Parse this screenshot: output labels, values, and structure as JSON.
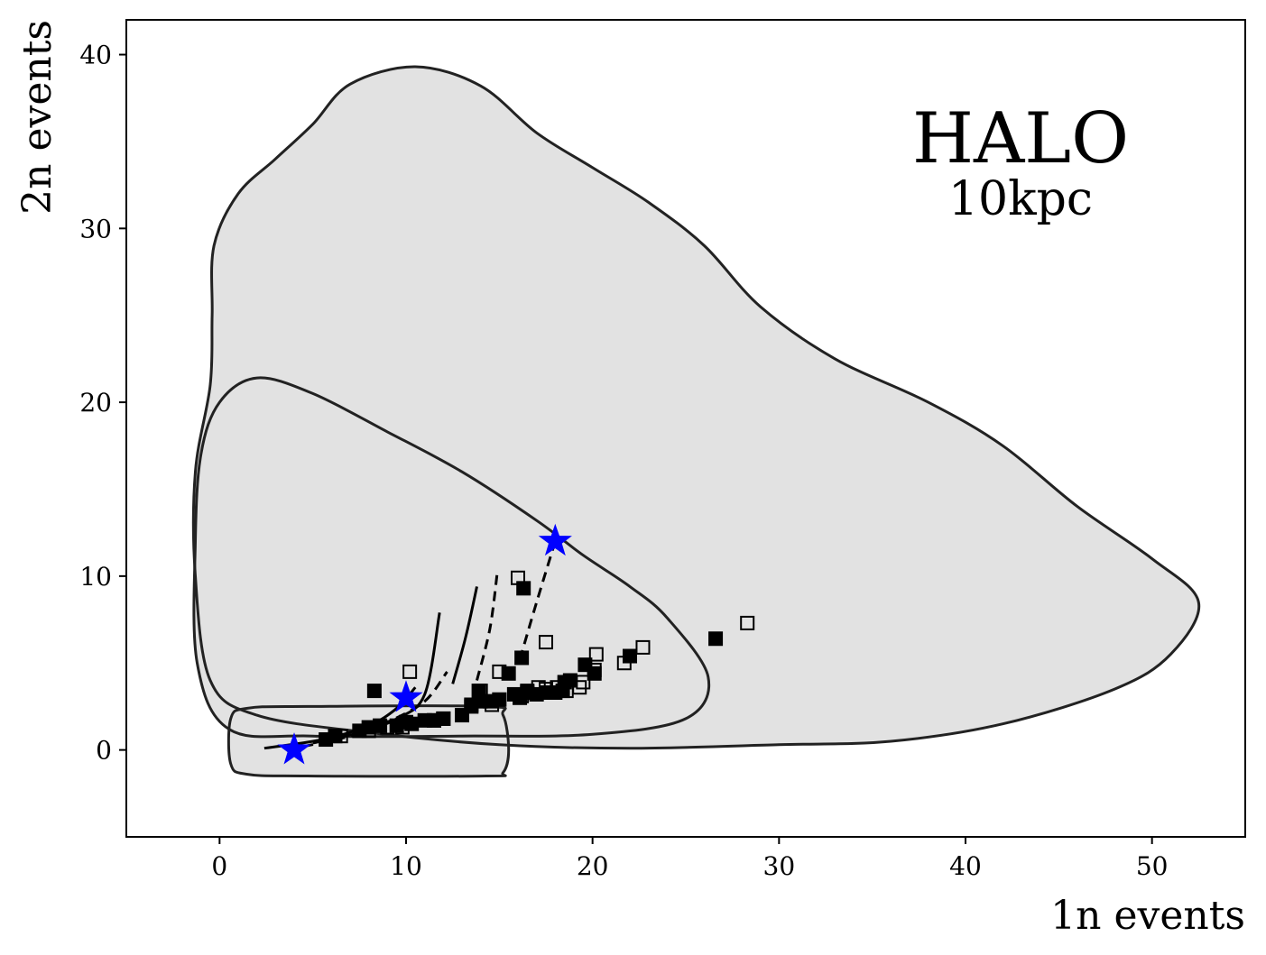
{
  "chart_data": {
    "type": "scatter",
    "title": "HALO",
    "subtitle": "10kpc",
    "xlabel": "1n events",
    "ylabel": "2n events",
    "xlim": [
      -5,
      55
    ],
    "ylim": [
      -5,
      42
    ],
    "xticks": [
      0,
      10,
      20,
      30,
      40,
      50
    ],
    "yticks": [
      0,
      10,
      20,
      30,
      40
    ],
    "grid": false,
    "colors": {
      "region_fill": "#e2e2e2",
      "region_edge": "#222222",
      "markers": "#000000",
      "stars": "#0000ff"
    },
    "regions": [
      {
        "points": [
          [
            4.7,
            -1.5
          ],
          [
            14.3,
            -1.5
          ],
          [
            15.2,
            -1.3
          ],
          [
            15.5,
            0
          ],
          [
            15.2,
            2.0
          ],
          [
            14.3,
            2.5
          ],
          [
            4.7,
            2.5
          ],
          [
            1.5,
            2.4
          ],
          [
            0.6,
            1.8
          ],
          [
            0.6,
            -0.8
          ],
          [
            1.5,
            -1.4
          ]
        ]
      },
      {
        "points": [
          [
            2,
            21.4
          ],
          [
            5,
            20.5
          ],
          [
            9,
            18.3
          ],
          [
            13,
            16
          ],
          [
            17,
            13.2
          ],
          [
            19.5,
            11.2
          ],
          [
            22,
            9.4
          ],
          [
            24,
            7.6
          ],
          [
            26.2,
            4.2
          ],
          [
            25,
            1.8
          ],
          [
            20,
            0.9
          ],
          [
            13,
            0.8
          ],
          [
            5,
            0.8
          ],
          [
            0.5,
            1.2
          ],
          [
            -1.2,
            5
          ],
          [
            -1.3,
            12
          ],
          [
            -1,
            17
          ],
          [
            0,
            20
          ]
        ]
      },
      {
        "points": [
          [
            10.5,
            39.3
          ],
          [
            14,
            38.2
          ],
          [
            17,
            35.5
          ],
          [
            20,
            33.5
          ],
          [
            23,
            31.5
          ],
          [
            26,
            29
          ],
          [
            29,
            25.5
          ],
          [
            33,
            22.5
          ],
          [
            38,
            20
          ],
          [
            42,
            17.5
          ],
          [
            46,
            14
          ],
          [
            50,
            11
          ],
          [
            52.5,
            8.5
          ],
          [
            51,
            5.5
          ],
          [
            48,
            3.5
          ],
          [
            42,
            1.5
          ],
          [
            36,
            0.5
          ],
          [
            30,
            0.3
          ],
          [
            22,
            0.1
          ],
          [
            15,
            0.3
          ],
          [
            8,
            1
          ],
          [
            2,
            2
          ],
          [
            -0.5,
            4
          ],
          [
            -1.3,
            10
          ],
          [
            -1.3,
            16
          ],
          [
            -0.5,
            21
          ],
          [
            -0.4,
            25
          ],
          [
            -0.3,
            29
          ],
          [
            1,
            32
          ],
          [
            3,
            34
          ],
          [
            5,
            36
          ],
          [
            7,
            38.3
          ]
        ]
      }
    ],
    "series": [
      {
        "marker": "filled-square",
        "points": [
          [
            8.3,
            3.4
          ],
          [
            5.7,
            0.6
          ],
          [
            6.2,
            0.8
          ],
          [
            7.5,
            1.1
          ],
          [
            8.0,
            1.3
          ],
          [
            8.6,
            1.4
          ],
          [
            9.5,
            1.4
          ],
          [
            10.0,
            1.6
          ],
          [
            10.3,
            1.5
          ],
          [
            11.0,
            1.7
          ],
          [
            11.5,
            1.7
          ],
          [
            12.0,
            1.8
          ],
          [
            13.0,
            2.0
          ],
          [
            13.5,
            2.6
          ],
          [
            14.0,
            2.8
          ],
          [
            14.5,
            2.8
          ],
          [
            15.0,
            2.9
          ],
          [
            15.8,
            3.2
          ],
          [
            16.1,
            3.0
          ],
          [
            16.5,
            3.3
          ],
          [
            17.0,
            3.2
          ],
          [
            17.5,
            3.3
          ],
          [
            18.0,
            3.3
          ],
          [
            18.4,
            3.4
          ],
          [
            18.5,
            3.9
          ],
          [
            18.8,
            4.0
          ],
          [
            19.6,
            4.9
          ],
          [
            20.1,
            4.4
          ],
          [
            15.5,
            4.4
          ],
          [
            16.2,
            5.3
          ],
          [
            16.3,
            9.3
          ],
          [
            22.0,
            5.4
          ],
          [
            26.6,
            6.4
          ],
          [
            13.9,
            3.4
          ]
        ]
      },
      {
        "marker": "open-square",
        "points": [
          [
            6.5,
            0.8
          ],
          [
            8.0,
            1.1
          ],
          [
            9.0,
            1.3
          ],
          [
            9.8,
            1.3
          ],
          [
            10.2,
            4.5
          ],
          [
            11.5,
            1.7
          ],
          [
            12.0,
            1.8
          ],
          [
            13.5,
            2.5
          ],
          [
            14.0,
            3.4
          ],
          [
            14.6,
            2.6
          ],
          [
            15.0,
            4.5
          ],
          [
            16.2,
            3.1
          ],
          [
            16.5,
            3.4
          ],
          [
            17.1,
            3.6
          ],
          [
            17.5,
            3.5
          ],
          [
            18.1,
            3.6
          ],
          [
            18.6,
            3.4
          ],
          [
            19.3,
            3.6
          ],
          [
            19.5,
            3.9
          ],
          [
            20.1,
            4.6
          ],
          [
            20.2,
            5.5
          ],
          [
            21.7,
            5.0
          ],
          [
            22.7,
            5.9
          ],
          [
            17.5,
            6.2
          ],
          [
            16.0,
            9.9
          ],
          [
            28.3,
            7.3
          ]
        ]
      },
      {
        "marker": "star",
        "points": [
          [
            4,
            0
          ],
          [
            10,
            3
          ],
          [
            18,
            12
          ]
        ]
      }
    ],
    "lines": [
      {
        "style": "solid",
        "points": [
          [
            2.4,
            0.1
          ],
          [
            5.5,
            0.6
          ],
          [
            8,
            1.4
          ],
          [
            9.5,
            2.4
          ],
          [
            10.5,
            3.6
          ]
        ]
      },
      {
        "style": "solid",
        "points": [
          [
            5,
            0.4
          ],
          [
            7.5,
            1.0
          ],
          [
            9.5,
            1.8
          ],
          [
            11.0,
            3.2
          ],
          [
            11.8,
            7.9
          ]
        ]
      },
      {
        "style": "solid",
        "points": [
          [
            12.5,
            3.8
          ],
          [
            13.2,
            6.5
          ],
          [
            13.8,
            9.4
          ]
        ]
      },
      {
        "style": "dashed",
        "points": [
          [
            4.5,
            0.2
          ],
          [
            7,
            0.8
          ],
          [
            9,
            1.6
          ],
          [
            11,
            2.8
          ],
          [
            12.2,
            4.5
          ]
        ]
      },
      {
        "style": "dashed",
        "points": [
          [
            13.8,
            4.0
          ],
          [
            14.5,
            7.0
          ],
          [
            14.9,
            10.3
          ]
        ]
      },
      {
        "style": "dashed",
        "points": [
          [
            16.1,
            5.2
          ],
          [
            17.0,
            8.5
          ],
          [
            18.0,
            12.0
          ]
        ]
      }
    ]
  }
}
